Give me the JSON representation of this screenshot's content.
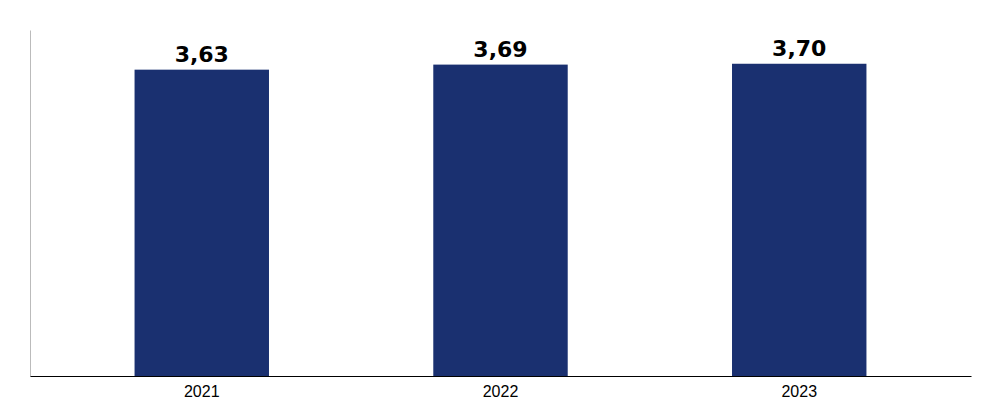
{
  "chart_data": {
    "type": "bar",
    "categories": [
      "2021",
      "2022",
      "2023"
    ],
    "values": [
      3.63,
      3.69,
      3.7
    ],
    "value_labels": [
      "3,63",
      "3,69",
      "3,70"
    ],
    "color": "#1a3070",
    "ylim": [
      0,
      4.1
    ],
    "data_labels": true,
    "tick_labels": "x",
    "grid": false
  }
}
